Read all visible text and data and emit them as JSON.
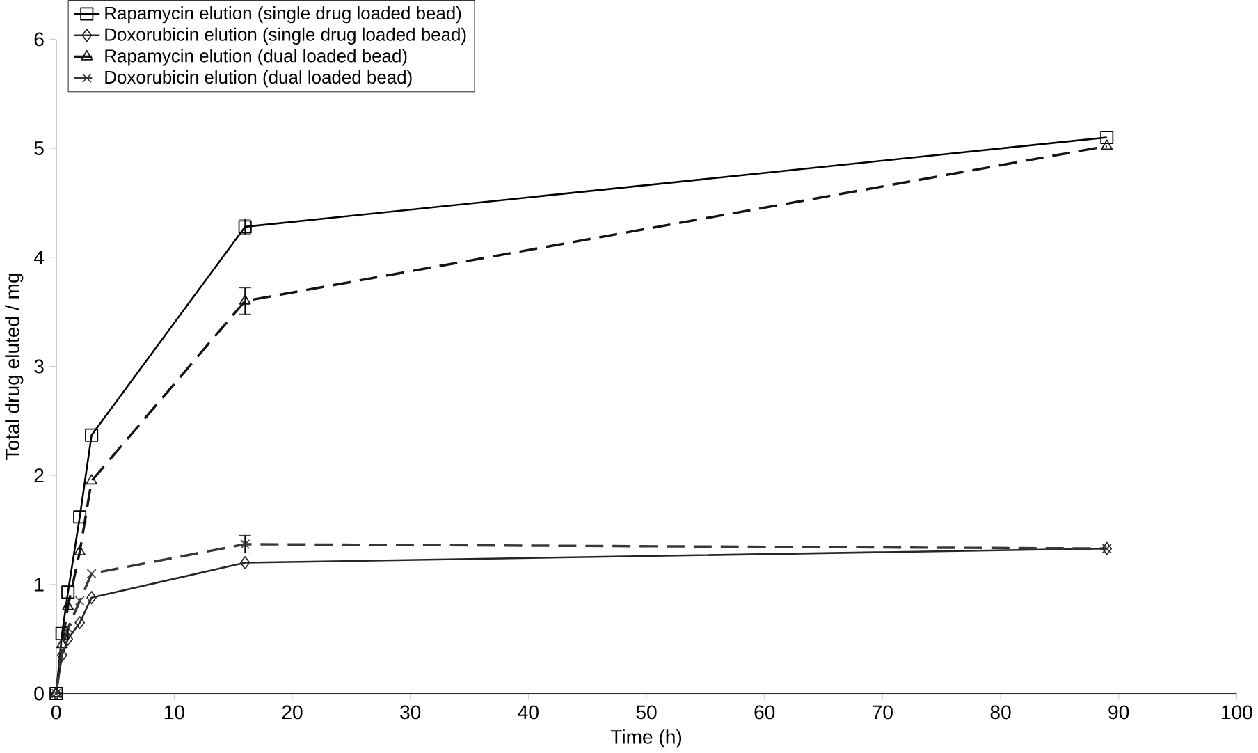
{
  "chart_data": {
    "type": "line",
    "xlabel": "Time (h)",
    "ylabel": "Total drug eluted / mg",
    "xlim": [
      0,
      100
    ],
    "ylim": [
      0,
      6
    ],
    "xticks": [
      0,
      10,
      20,
      30,
      40,
      50,
      60,
      70,
      80,
      90,
      100
    ],
    "yticks": [
      0,
      1,
      2,
      3,
      4,
      5,
      6
    ],
    "x": [
      0,
      0.5,
      1,
      2,
      3,
      16,
      89
    ],
    "legend": "top left",
    "grid": false,
    "series": [
      {
        "name": "Rapamycin elution (single drug loaded bead)",
        "color": "#000000",
        "marker": "square",
        "line_style": "solid",
        "values": [
          0,
          0.55,
          0.93,
          1.62,
          2.37,
          4.28,
          5.1
        ],
        "errors": [
          null,
          null,
          null,
          null,
          null,
          0.07,
          null
        ]
      },
      {
        "name": "Doxorubicin elution (single drug loaded bead)",
        "color": "#262626",
        "marker": "diamond",
        "line_style": "solid",
        "values": [
          0,
          0.35,
          0.5,
          0.65,
          0.88,
          1.2,
          1.33
        ]
      },
      {
        "name": "Rapamycin elution (dual loaded bead)",
        "color": "#141414",
        "marker": "triangle",
        "line_style": "dashed",
        "values": [
          0,
          0.45,
          0.8,
          1.3,
          1.95,
          3.6,
          5.02
        ],
        "errors": [
          null,
          null,
          null,
          null,
          null,
          0.12,
          null
        ]
      },
      {
        "name": "Doxorubicin elution (dual loaded bead)",
        "color": "#383838",
        "marker": "cross",
        "line_style": "dashed",
        "values": [
          0,
          0.4,
          0.6,
          0.85,
          1.1,
          1.37,
          1.33
        ],
        "errors": [
          null,
          null,
          null,
          null,
          null,
          0.08,
          null
        ]
      }
    ]
  }
}
